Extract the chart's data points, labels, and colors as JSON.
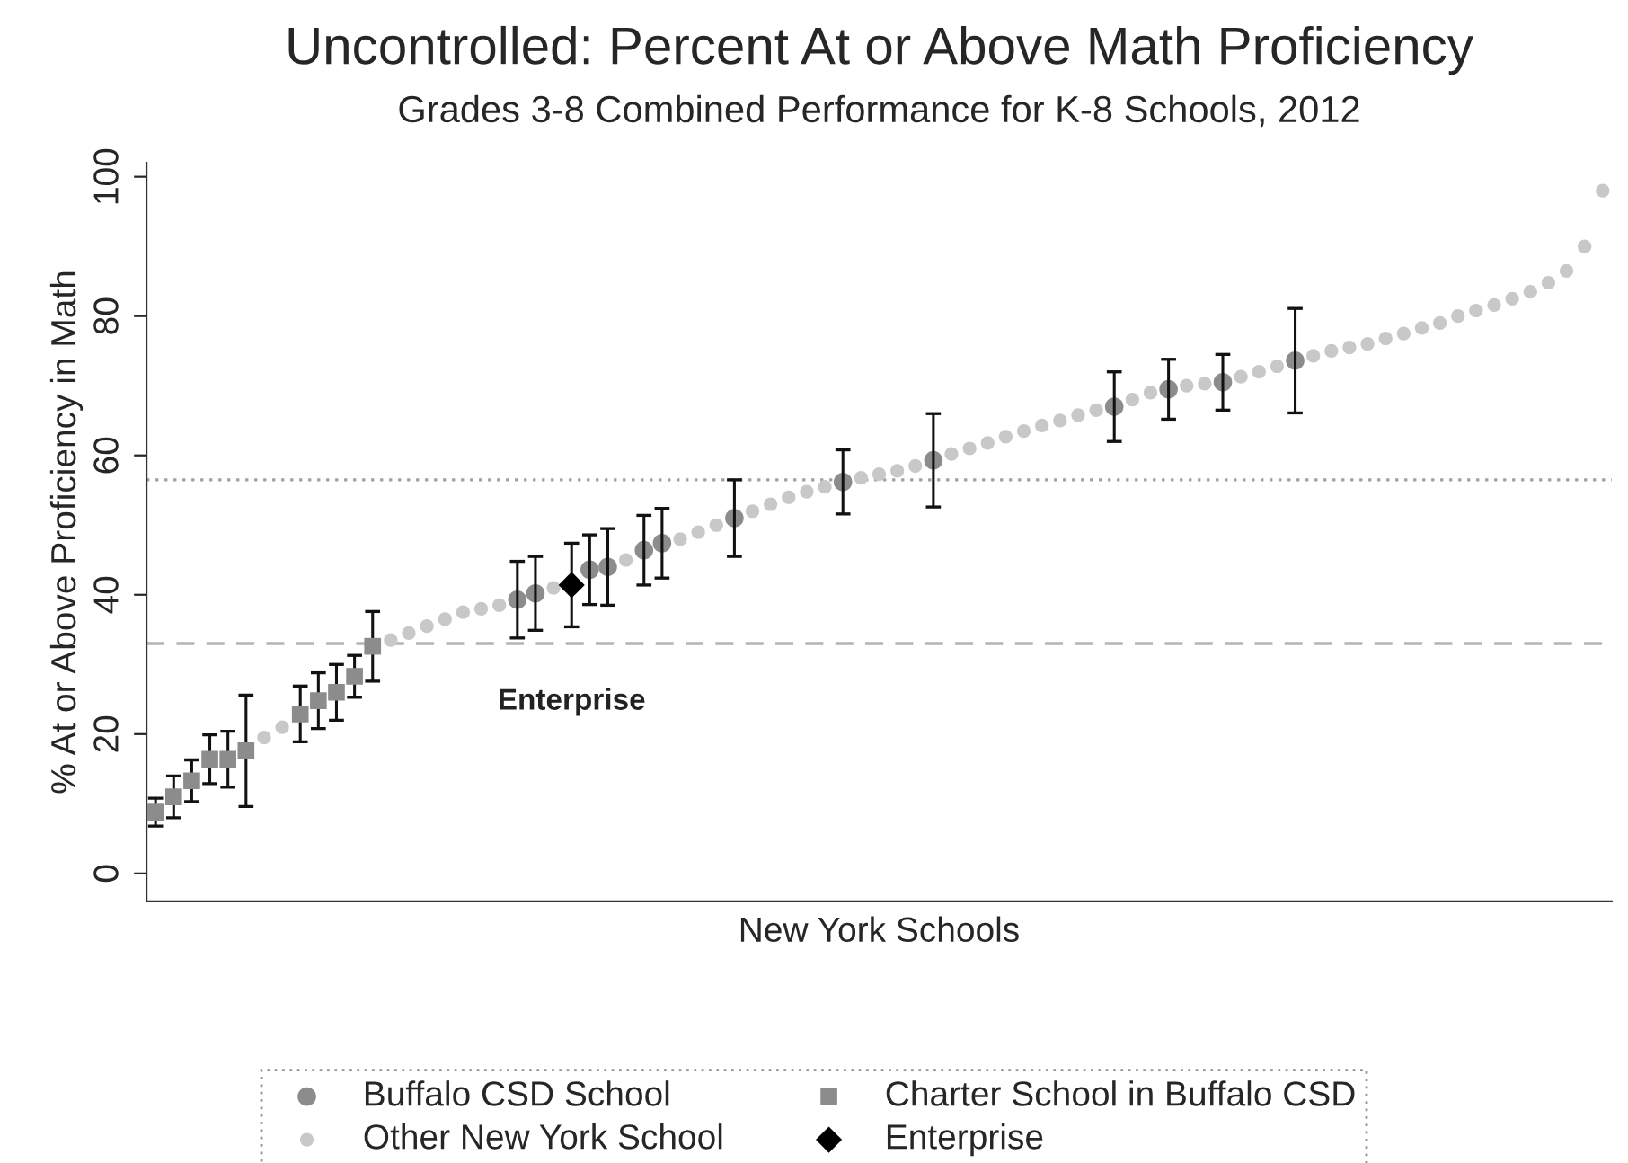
{
  "chart_data": {
    "type": "scatter",
    "title": "Uncontrolled: Percent At or Above Math Proficiency",
    "subtitle": "Grades 3-8 Combined Performance for K-8 Schools, 2012",
    "xlabel": "New York Schools",
    "ylabel": "% At or Above Proficiency in Math",
    "categories": [
      null,
      null,
      null,
      null,
      null,
      null,
      null,
      null,
      null,
      null,
      null,
      null,
      null,
      null,
      null,
      null,
      null,
      null,
      null,
      null,
      null,
      null,
      null,
      null,
      null,
      null,
      null,
      null,
      null,
      null,
      null,
      null,
      null,
      null,
      null,
      null,
      null,
      null,
      null,
      null,
      null,
      null,
      null,
      null,
      null,
      null,
      null,
      null,
      null,
      null,
      null,
      null,
      null,
      null,
      null,
      null,
      null,
      null,
      null,
      null,
      null,
      null,
      null,
      null,
      null,
      null,
      null,
      null,
      null,
      null,
      null,
      null,
      null,
      null,
      null,
      null,
      null,
      null,
      null,
      null,
      null
    ],
    "ylim": [
      -4,
      102
    ],
    "yticks": [
      0,
      20,
      40,
      60,
      80,
      100
    ],
    "grid": false,
    "legend": "bottom",
    "series": [
      {
        "name": "Buffalo CSD School",
        "color": "#8c8c8c",
        "marker": "circle",
        "values": [
          null,
          null,
          null,
          null,
          null,
          null,
          null,
          null,
          null,
          null,
          null,
          null,
          null,
          null,
          null,
          null,
          null,
          null,
          null,
          null,
          39.3,
          40.2,
          null,
          null,
          43.6,
          44,
          null,
          46.4,
          47.4,
          null,
          null,
          null,
          51,
          null,
          null,
          null,
          null,
          null,
          56.2,
          null,
          null,
          null,
          null,
          59.3,
          null,
          null,
          null,
          null,
          null,
          null,
          null,
          null,
          null,
          67,
          null,
          null,
          69.5,
          null,
          null,
          70.5,
          null,
          null,
          null,
          73.6,
          null,
          null,
          null,
          null,
          null,
          null,
          null,
          null,
          null,
          null,
          null,
          null,
          null,
          null,
          null,
          null,
          null
        ],
        "errors": [
          null,
          null,
          null,
          null,
          null,
          null,
          null,
          null,
          null,
          null,
          null,
          null,
          null,
          null,
          null,
          null,
          null,
          null,
          null,
          null,
          5.5,
          5.3,
          null,
          null,
          5,
          5.5,
          null,
          5,
          5,
          null,
          null,
          null,
          5.5,
          null,
          null,
          null,
          null,
          null,
          4.6,
          null,
          null,
          null,
          null,
          6.7,
          null,
          null,
          null,
          null,
          null,
          null,
          null,
          null,
          null,
          5,
          null,
          null,
          4.3,
          null,
          null,
          4,
          null,
          null,
          null,
          7.5,
          null,
          null,
          null,
          null,
          null,
          null,
          null,
          null,
          null,
          null,
          null,
          null,
          null,
          null,
          null,
          null,
          null
        ]
      },
      {
        "name": "Charter School in Buffalo CSD",
        "color": "#8c8c8c",
        "marker": "square",
        "values": [
          8.8,
          11,
          13.3,
          16.4,
          16.4,
          17.6,
          null,
          null,
          22.9,
          24.8,
          26,
          28.3,
          32.6,
          null,
          null,
          null,
          null,
          null,
          null,
          null,
          null,
          null,
          null,
          null,
          null,
          null,
          null,
          null,
          null,
          null,
          null,
          null,
          null,
          null,
          null,
          null,
          null,
          null,
          null,
          null,
          null,
          null,
          null,
          null,
          null,
          null,
          null,
          null,
          null,
          null,
          null,
          null,
          null,
          null,
          null,
          null,
          null,
          null,
          null,
          null,
          null,
          null,
          null,
          null,
          null,
          null,
          null,
          null,
          null,
          null,
          null,
          null,
          null,
          null,
          null,
          null,
          null,
          null,
          null,
          null,
          null
        ],
        "errors": [
          2,
          3,
          3,
          3.5,
          4,
          8,
          null,
          null,
          4,
          4,
          4,
          3,
          5,
          null,
          null,
          null,
          null,
          null,
          null,
          null,
          null,
          null,
          null,
          null,
          null,
          null,
          null,
          null,
          null,
          null,
          null,
          null,
          null,
          null,
          null,
          null,
          null,
          null,
          null,
          null,
          null,
          null,
          null,
          null,
          null,
          null,
          null,
          null,
          null,
          null,
          null,
          null,
          null,
          null,
          null,
          null,
          null,
          null,
          null,
          null,
          null,
          null,
          null,
          null,
          null,
          null,
          null,
          null,
          null,
          null,
          null,
          null,
          null,
          null,
          null,
          null,
          null,
          null,
          null,
          null,
          null
        ]
      },
      {
        "name": "Other New York School",
        "color": "#c8c8c8",
        "marker": "circle",
        "values": [
          null,
          null,
          null,
          null,
          null,
          null,
          19.5,
          21,
          null,
          null,
          null,
          null,
          null,
          33.5,
          34.5,
          35.5,
          36.5,
          37.5,
          38,
          38.5,
          null,
          null,
          41,
          null,
          null,
          null,
          45,
          null,
          null,
          48,
          49,
          50,
          null,
          52,
          53,
          54,
          54.8,
          55.5,
          null,
          56.8,
          57.3,
          57.8,
          58.5,
          null,
          60.2,
          61,
          61.8,
          62.7,
          63.5,
          64.3,
          65,
          65.8,
          66.5,
          null,
          68,
          69,
          null,
          70,
          70.3,
          null,
          71.3,
          72,
          72.8,
          null,
          74.3,
          75,
          75.5,
          76,
          76.8,
          77.5,
          78.3,
          79,
          80,
          80.8,
          81.6,
          82.5,
          83.5,
          84.8,
          86.5,
          90,
          98
        ]
      },
      {
        "name": "Enterprise",
        "color": "#000000",
        "marker": "diamond",
        "values": [
          null,
          null,
          null,
          null,
          null,
          null,
          null,
          null,
          null,
          null,
          null,
          null,
          null,
          null,
          null,
          null,
          null,
          null,
          null,
          null,
          null,
          null,
          null,
          41.4,
          null,
          null,
          null,
          null,
          null,
          null,
          null,
          null,
          null,
          null,
          null,
          null,
          null,
          null,
          null,
          null,
          null,
          null,
          null,
          null,
          null,
          null,
          null,
          null,
          null,
          null,
          null,
          null,
          null,
          null,
          null,
          null,
          null,
          null,
          null,
          null,
          null,
          null,
          null,
          null,
          null,
          null,
          null,
          null,
          null,
          null,
          null,
          null,
          null,
          null,
          null,
          null,
          null,
          null,
          null,
          null,
          null
        ],
        "errors": [
          null,
          null,
          null,
          null,
          null,
          null,
          null,
          null,
          null,
          null,
          null,
          null,
          null,
          null,
          null,
          null,
          null,
          null,
          null,
          null,
          null,
          null,
          null,
          6,
          null,
          null,
          null,
          null,
          null,
          null,
          null,
          null,
          null,
          null,
          null,
          null,
          null,
          null,
          null,
          null,
          null,
          null,
          null,
          null,
          null,
          null,
          null,
          null,
          null,
          null,
          null,
          null,
          null,
          null,
          null,
          null,
          null,
          null,
          null,
          null,
          null,
          null,
          null,
          null,
          null,
          null,
          null,
          null,
          null,
          null,
          null,
          null,
          null,
          null,
          null,
          null,
          null,
          null,
          null,
          null,
          null
        ]
      }
    ],
    "ref_lines": [
      {
        "axis": "y",
        "value": 56.5,
        "color": "#a0a0a0",
        "line_style": "dotted"
      },
      {
        "axis": "y",
        "value": 33,
        "color": "#b4b4b4",
        "line_style": "dashed"
      }
    ],
    "annotations": [
      "Enterprise"
    ],
    "tick_labels": "y"
  }
}
